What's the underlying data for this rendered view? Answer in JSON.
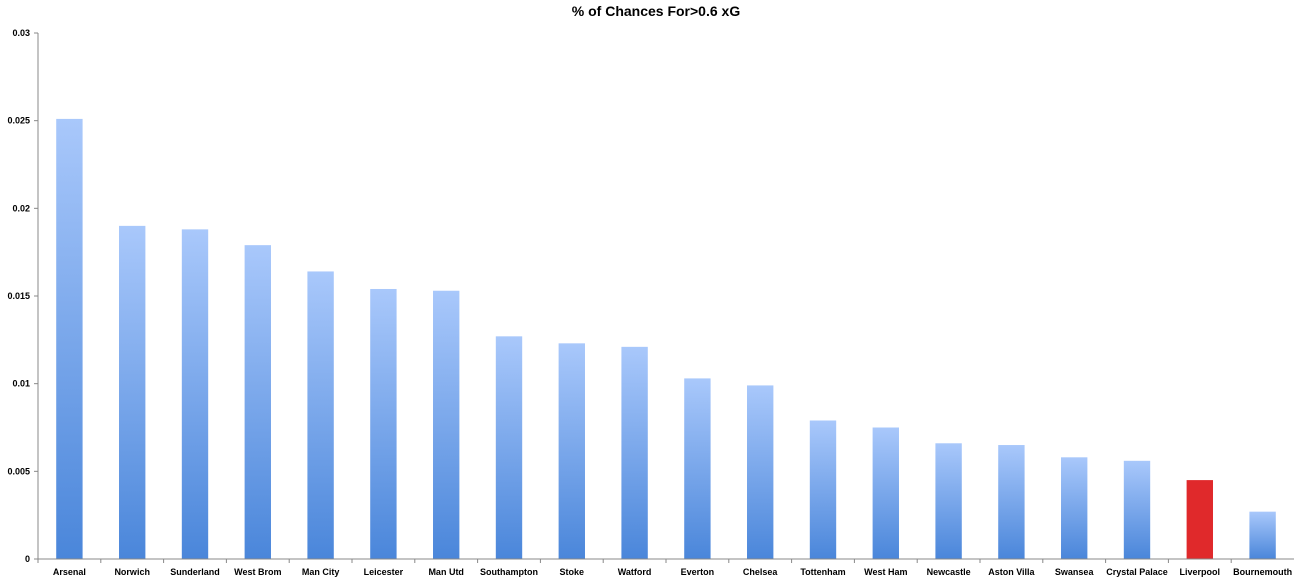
{
  "chart_data": {
    "type": "bar",
    "title": "% of Chances For>0.6 xG",
    "xlabel": "",
    "ylabel": "",
    "ylim": [
      0,
      0.03
    ],
    "yticks": [
      0,
      0.005,
      0.01,
      0.015,
      0.02,
      0.025,
      0.03
    ],
    "ytick_labels": [
      "0",
      "0.005",
      "0.01",
      "0.015",
      "0.02",
      "0.025",
      "0.03"
    ],
    "grid": false,
    "legend": "none",
    "categories": [
      "Arsenal",
      "Norwich",
      "Sunderland",
      "West Brom",
      "Man City",
      "Leicester",
      "Man Utd",
      "Southampton",
      "Stoke",
      "Watford",
      "Everton",
      "Chelsea",
      "Tottenham",
      "West Ham",
      "Newcastle",
      "Aston Villa",
      "Swansea",
      "Crystal Palace",
      "Liverpool",
      "Bournemouth"
    ],
    "values": [
      0.0251,
      0.019,
      0.0188,
      0.0179,
      0.0164,
      0.0154,
      0.0153,
      0.0127,
      0.0123,
      0.0121,
      0.0103,
      0.0099,
      0.0079,
      0.0075,
      0.0066,
      0.0065,
      0.0058,
      0.0056,
      0.0045,
      0.0027
    ],
    "highlight": "Liverpool",
    "colors": {
      "bar_top": "#a9c8fb",
      "bar_bottom": "#4a86da",
      "highlight": "#e0292b",
      "axis": "#888888"
    }
  }
}
